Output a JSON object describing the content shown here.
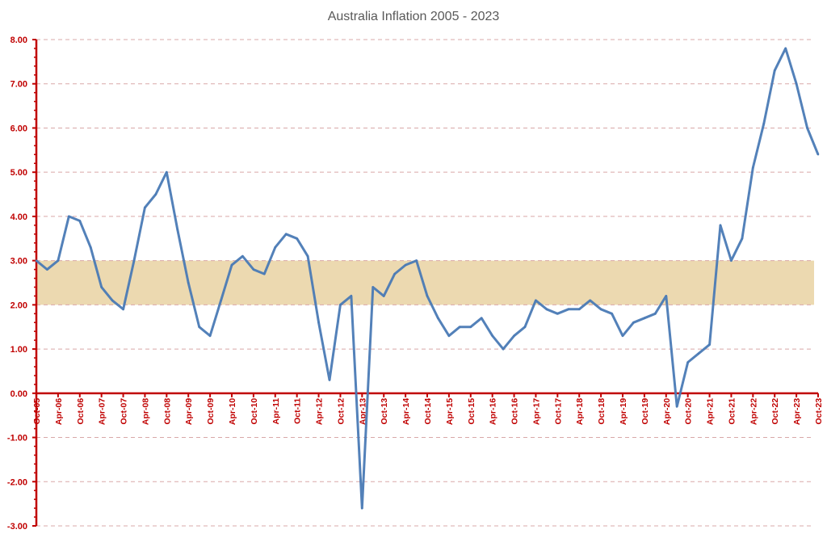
{
  "chart_data": {
    "type": "line",
    "title": "Australia Inflation 2005 - 2023",
    "xlabel": "",
    "ylabel": "",
    "ylim": [
      -3,
      8
    ],
    "yticks": [
      8,
      7,
      6,
      5,
      4,
      3,
      2,
      1,
      0,
      -1,
      -2,
      -3
    ],
    "ytick_labels": [
      "8.00",
      "7.00",
      "6.00",
      "5.00",
      "4.00",
      "3.00",
      "2.00",
      "1.00",
      "0.00",
      "-1.00",
      "-2.00",
      "-3.00"
    ],
    "grid": true,
    "target_band": {
      "low": 2,
      "high": 3,
      "color": "#ecd9b0"
    },
    "xtick_labels": [
      "Oct-05",
      "Apr-06",
      "Oct-06",
      "Apr-07",
      "Oct-07",
      "Apr-08",
      "Oct-08",
      "Apr-09",
      "Oct-09",
      "Apr-10",
      "Oct-10",
      "Apr-11",
      "Oct-11",
      "Apr-12",
      "Oct-12",
      "Apr-13",
      "Oct-13",
      "Apr-14",
      "Oct-14",
      "Apr-15",
      "Oct-15",
      "Apr-16",
      "Oct-16",
      "Apr-17",
      "Oct-17",
      "Apr-18",
      "Oct-18",
      "Apr-19",
      "Oct-19",
      "Apr-20",
      "Oct-20",
      "Apr-21",
      "Oct-21",
      "Apr-22",
      "Oct-22",
      "Apr-23",
      "Oct-23"
    ],
    "series": [
      {
        "name": "Inflation",
        "color": "#4a7ab5",
        "values": [
          3.0,
          2.8,
          3.0,
          4.0,
          3.9,
          3.3,
          2.4,
          2.1,
          1.9,
          3.0,
          4.2,
          4.5,
          5.0,
          3.7,
          2.5,
          1.5,
          1.3,
          2.1,
          2.9,
          3.1,
          2.8,
          2.7,
          3.3,
          3.6,
          3.5,
          3.1,
          1.6,
          0.3,
          2.0,
          2.2,
          -2.6,
          2.4,
          2.2,
          2.7,
          2.9,
          3.0,
          2.2,
          1.7,
          1.3,
          1.5,
          1.5,
          1.7,
          1.3,
          1.0,
          1.3,
          1.5,
          2.1,
          1.9,
          1.8,
          1.9,
          1.9,
          2.1,
          1.9,
          1.8,
          1.3,
          1.6,
          1.7,
          1.8,
          2.2,
          -0.3,
          0.7,
          0.9,
          1.1,
          3.8,
          3.0,
          3.5,
          5.1,
          6.1,
          7.3,
          7.8,
          7.0,
          6.0,
          5.4
        ]
      }
    ],
    "axis_color": "#c00000",
    "grid_color": "#d9a8a8"
  }
}
